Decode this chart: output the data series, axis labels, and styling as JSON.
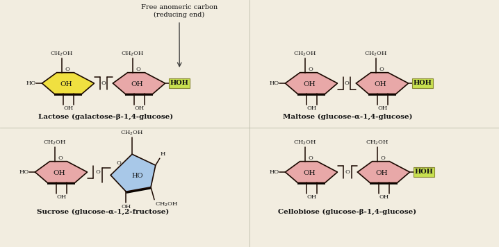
{
  "bg_color": "#f2ede0",
  "ring_pink": "#e8a8a8",
  "ring_yellow": "#f0e040",
  "ring_blue": "#a8c8e8",
  "ring_edge": "#1a0800",
  "hoh_bg": "#c8e050",
  "text_color": "#111111",
  "label_lactose": "Lactose (galactose-β-1,4-glucose)",
  "label_maltose": "Maltose (glucose-α-1,4-glucose)",
  "label_sucrose": "Sucrose (glucose-α-1,2-fructose)",
  "label_cellobiose": "Cellobiose (glucose-β-1,4-glucose)",
  "ann_line1": "Free anomeric carbon",
  "ann_line2": "(reducing end)"
}
